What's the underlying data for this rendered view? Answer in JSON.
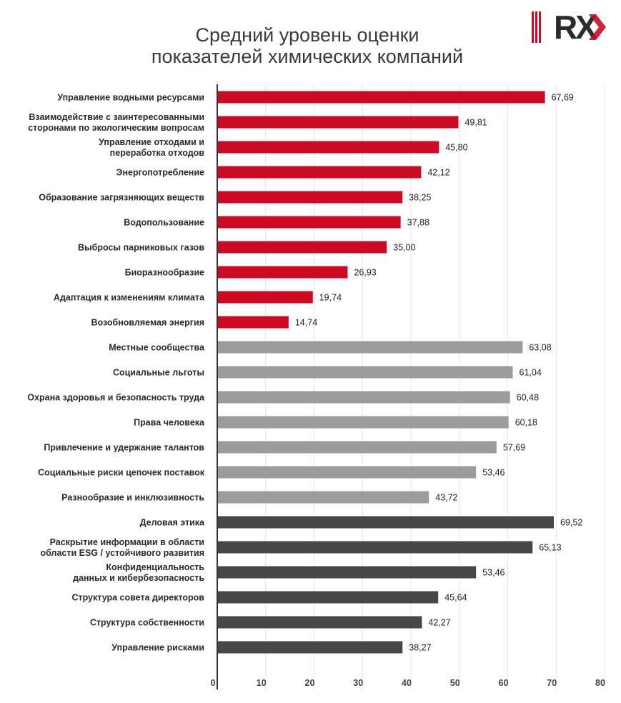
{
  "header": {
    "title_line1": "Средний уровень оценки",
    "title_line2": "показателей химических компаний",
    "logo_text": "RX"
  },
  "colors": {
    "environment": "#cc0a24",
    "social": "#9c9c9c",
    "governance": "#474747",
    "grid": "#e6e6e6",
    "axis": "#333333",
    "logo_red": "#cc0a24",
    "logo_dark": "#2b2b2b"
  },
  "chart_data": {
    "type": "bar",
    "orientation": "horizontal",
    "title": "Средний уровень оценки показателей химических компаний",
    "xlim": [
      0,
      80
    ],
    "xticks": [
      0,
      10,
      20,
      30,
      40,
      50,
      60,
      70,
      80
    ],
    "grid": true,
    "categories": [
      [
        "Управление водными ресурсами"
      ],
      [
        "Взаимодействие с заинтересованными",
        "сторонами по экологическим вопросам"
      ],
      [
        "Управление отходами и",
        "переработка отходов"
      ],
      [
        "Энергопотребление"
      ],
      [
        "Образование загрязняющих веществ"
      ],
      [
        "Водопользование"
      ],
      [
        "Выбросы парниковых газов"
      ],
      [
        "Биоразнообразие"
      ],
      [
        "Адаптация к изменениям климата"
      ],
      [
        "Возобновляемая энергия"
      ],
      [
        "Местные сообщества"
      ],
      [
        "Социальные льготы"
      ],
      [
        "Охрана здоровья и безопасность труда"
      ],
      [
        "Права человека"
      ],
      [
        "Привлечение и удержание талантов"
      ],
      [
        "Социальные риски цепочек поставок"
      ],
      [
        "Разнообразие и инклюзивность"
      ],
      [
        "Деловая этика"
      ],
      [
        "Раскрытие информации в области",
        "области ESG / устойчивого развития"
      ],
      [
        "Конфиденциальность",
        "данных и кибербезопасность"
      ],
      [
        "Структура совета директоров"
      ],
      [
        "Структура собственности"
      ],
      [
        "Управление рисками"
      ]
    ],
    "values": [
      67.69,
      49.81,
      45.8,
      42.12,
      38.25,
      37.88,
      35.0,
      26.93,
      19.74,
      14.74,
      63.08,
      61.04,
      60.48,
      60.18,
      57.69,
      53.46,
      43.72,
      69.52,
      65.13,
      53.46,
      45.64,
      42.27,
      38.27
    ],
    "value_labels": [
      "67,69",
      "49,81",
      "45,80",
      "42,12",
      "38,25",
      "37,88",
      "35,00",
      "26,93",
      "19,74",
      "14,74",
      "63,08",
      "61,04",
      "60,48",
      "60,18",
      "57,69",
      "53,46",
      "43,72",
      "69,52",
      "65,13",
      "53,46",
      "45,64",
      "42,27",
      "38,27"
    ],
    "groups": [
      "environment",
      "environment",
      "environment",
      "environment",
      "environment",
      "environment",
      "environment",
      "environment",
      "environment",
      "environment",
      "social",
      "social",
      "social",
      "social",
      "social",
      "social",
      "social",
      "governance",
      "governance",
      "governance",
      "governance",
      "governance",
      "governance"
    ]
  }
}
